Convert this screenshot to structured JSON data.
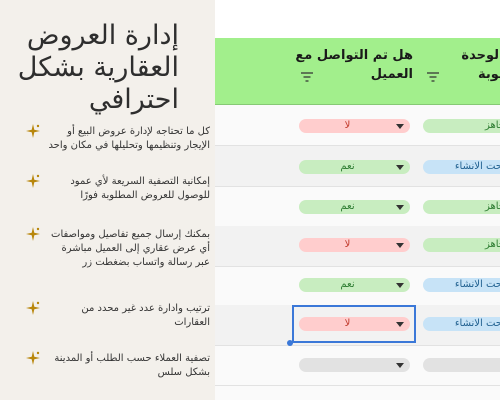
{
  "promo": {
    "title": "إدارة العروض العقارية بشكل احترافي",
    "features": [
      "كل ما تحتاجه لإدارة عروض البيع أو الإيجار وتنظيمها وتحليلها في مكان واحد",
      "إمكانية التصفية السريعة لأي عمود للوصول للعروض المطلوبة فورًا",
      "بمكنك إرسال جميع تفاصيل ومواصفات أي عرض عقاري إلى العميل مباشرة عبر رسالة واتساب بضغطت زر",
      "ترتيب وادارة عدد غير محدد من العقارات",
      "تصفية العملاء حسب الطلب أو المدينة بشكل سلس"
    ],
    "star_color": "#b8860b"
  },
  "sheet": {
    "headers": {
      "contacted": "هل تم التواصل مع العميل",
      "unit_status": "حالة الوحدة المطلوبة"
    },
    "rows": [
      {
        "contacted": "لا",
        "contacted_style": "red",
        "unit": "جاهز",
        "unit_style": "ok"
      },
      {
        "contacted": "نعم",
        "contacted_style": "green",
        "unit": "تحت الانشاء",
        "unit_style": "build"
      },
      {
        "contacted": "نعم",
        "contacted_style": "green",
        "unit": "جاهز",
        "unit_style": "ok"
      },
      {
        "contacted": "لا",
        "contacted_style": "red",
        "unit": "جاهز",
        "unit_style": "ok"
      },
      {
        "contacted": "نعم",
        "contacted_style": "green",
        "unit": "تحت الانشاء",
        "unit_style": "build"
      },
      {
        "contacted": "لا",
        "contacted_style": "red",
        "unit": "تحت الانشاء",
        "unit_style": "build"
      },
      {
        "contacted": "",
        "contacted_style": "grey",
        "unit": "",
        "unit_style": "grey"
      }
    ],
    "colors": {
      "header_bg": "#a2ef8c",
      "selection": "#3b78d8"
    }
  }
}
